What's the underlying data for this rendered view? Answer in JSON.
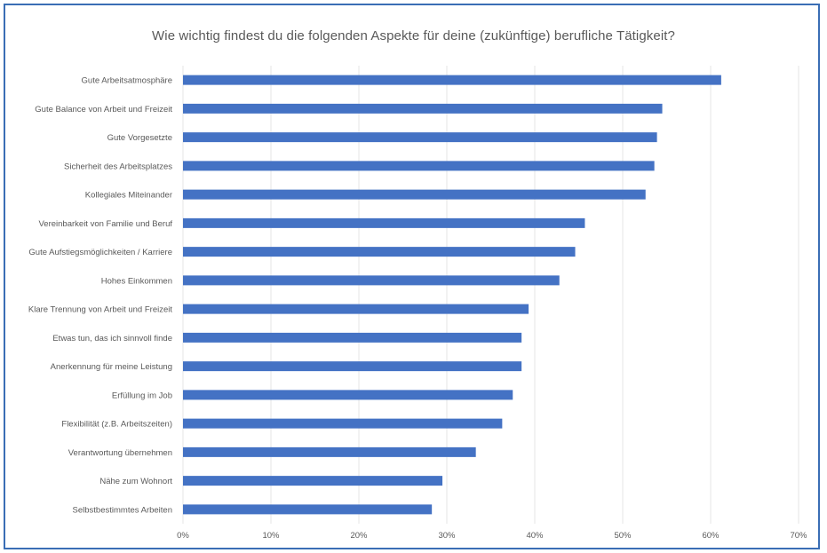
{
  "chart_data": {
    "type": "bar",
    "orientation": "horizontal",
    "title": "Wie wichtig findest du die folgenden Aspekte für deine (zukünftige) berufliche Tätigkeit?",
    "xlabel": "",
    "ylabel": "",
    "xlim": [
      0,
      0.7
    ],
    "ticks": [
      0,
      0.1,
      0.2,
      0.3,
      0.4,
      0.5,
      0.6,
      0.7
    ],
    "tick_labels": [
      "0%",
      "10%",
      "20%",
      "30%",
      "40%",
      "50%",
      "60%",
      "70%"
    ],
    "grid": true,
    "bar_color": "#4472c4",
    "categories": [
      "Gute Arbeitsatmosphäre",
      "Gute Balance von Arbeit und Freizeit",
      "Gute Vorgesetzte",
      "Sicherheit des Arbeitsplatzes",
      "Kollegiales Miteinander",
      "Vereinbarkeit von Familie und Beruf",
      "Gute Aufstiegsmöglichkeiten / Karriere",
      "Hohes Einkommen",
      "Klare Trennung von Arbeit und Freizeit",
      "Etwas tun, das ich sinnvoll finde",
      "Anerkennung für meine Leistung",
      "Erfüllung im Job",
      "Flexibilität (z.B. Arbeitszeiten)",
      "Verantwortung übernehmen",
      "Nähe zum Wohnort",
      "Selbstbestimmtes Arbeiten"
    ],
    "values": [
      0.612,
      0.545,
      0.539,
      0.536,
      0.526,
      0.457,
      0.446,
      0.428,
      0.393,
      0.385,
      0.385,
      0.375,
      0.363,
      0.333,
      0.295,
      0.283
    ]
  }
}
